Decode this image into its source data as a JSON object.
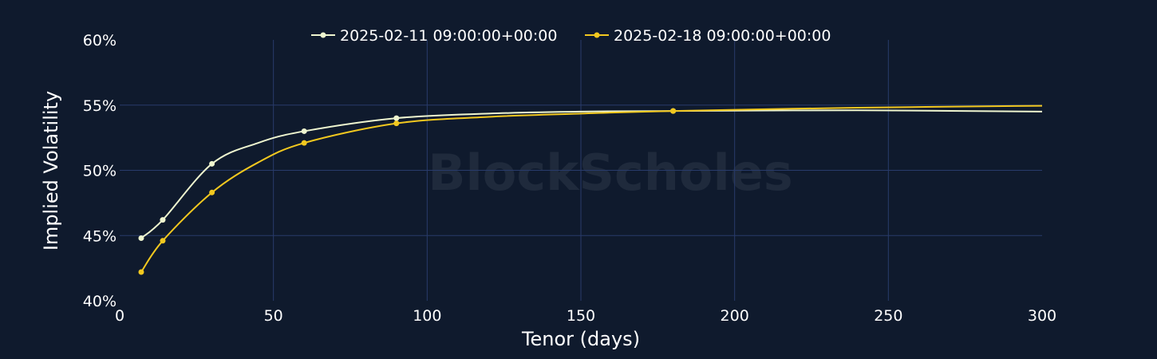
{
  "chart_data": {
    "type": "line",
    "title": "",
    "xlabel": "Tenor (days)",
    "ylabel": "Implied Volatility",
    "xlim": [
      0,
      300
    ],
    "ylim": [
      40,
      60
    ],
    "x_ticks": [
      0,
      50,
      100,
      150,
      200,
      250,
      300
    ],
    "y_ticks": [
      40,
      45,
      50,
      55,
      60
    ],
    "y_tick_labels": [
      "40%",
      "45%",
      "50%",
      "55%",
      "60%"
    ],
    "grid": true,
    "legend_position": "top-center",
    "watermark": "BlockScholes",
    "series": [
      {
        "name": "2025-02-11 09:00:00+00:00",
        "color": "#eef5cf",
        "points": [
          [
            7,
            44.8
          ],
          [
            14,
            46.2
          ],
          [
            30,
            50.5
          ],
          [
            60,
            53.0
          ],
          [
            90,
            54.0
          ],
          [
            180,
            54.55
          ]
        ],
        "curve": [
          [
            7,
            44.8
          ],
          [
            14,
            46.2
          ],
          [
            30,
            50.5
          ],
          [
            45,
            52.1
          ],
          [
            60,
            53.0
          ],
          [
            90,
            54.0
          ],
          [
            120,
            54.35
          ],
          [
            150,
            54.5
          ],
          [
            180,
            54.55
          ],
          [
            240,
            54.6
          ],
          [
            300,
            54.5
          ]
        ]
      },
      {
        "name": "2025-02-18 09:00:00+00:00",
        "color": "#f2c81f",
        "points": [
          [
            7,
            42.2
          ],
          [
            14,
            44.6
          ],
          [
            30,
            48.3
          ],
          [
            60,
            52.1
          ],
          [
            90,
            53.6
          ],
          [
            180,
            54.55
          ]
        ],
        "curve": [
          [
            7,
            42.2
          ],
          [
            14,
            44.6
          ],
          [
            30,
            48.3
          ],
          [
            45,
            50.6
          ],
          [
            60,
            52.1
          ],
          [
            90,
            53.6
          ],
          [
            120,
            54.1
          ],
          [
            150,
            54.35
          ],
          [
            180,
            54.55
          ],
          [
            240,
            54.8
          ],
          [
            300,
            54.95
          ]
        ]
      }
    ]
  }
}
